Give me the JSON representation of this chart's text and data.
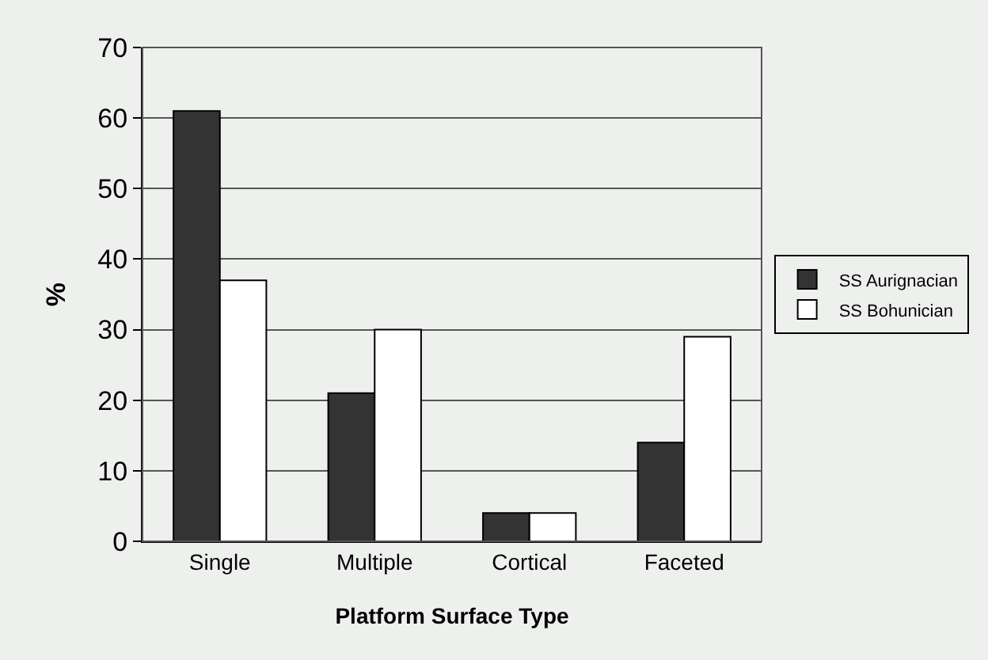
{
  "chart_data": {
    "type": "bar",
    "xlabel": "Platform Surface Type",
    "ylabel": "%",
    "categories": [
      "Single",
      "Multiple",
      "Cortical",
      "Faceted"
    ],
    "series": [
      {
        "name": "SS Aurignacian",
        "color": "#333333",
        "values": [
          61,
          21,
          4,
          14
        ]
      },
      {
        "name": "SS Bohunician",
        "color": "#ffffff",
        "values": [
          37,
          30,
          4,
          29
        ]
      }
    ],
    "ylim": [
      0,
      70
    ],
    "yticks": [
      0,
      10,
      20,
      30,
      40,
      50,
      60,
      70
    ],
    "grid": "y",
    "legend": "right"
  }
}
